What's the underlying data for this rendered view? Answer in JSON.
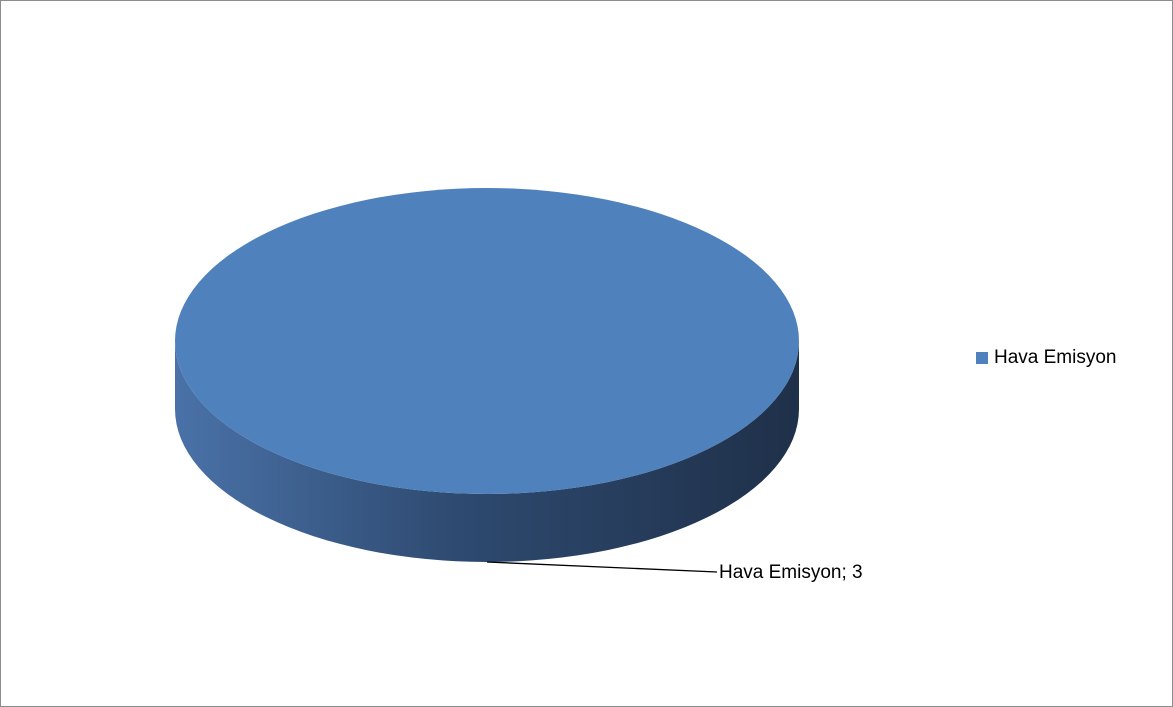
{
  "chart_data": {
    "type": "pie",
    "categories": [
      "Hava Emisyon"
    ],
    "values": [
      3
    ],
    "data_labels": [
      "Hava Emisyon; 3"
    ],
    "legend": {
      "entries": [
        "Hava Emisyon"
      ],
      "placement": "right"
    },
    "style": "3d"
  },
  "colors": {
    "slice_top": "#4f81bd",
    "slice_side_light": "#4a72a8",
    "slice_side_mid": "#2e4a70",
    "slice_side_dark": "#1f3049",
    "leader_line": "#000000",
    "frame_border": "#8c8c8c"
  }
}
